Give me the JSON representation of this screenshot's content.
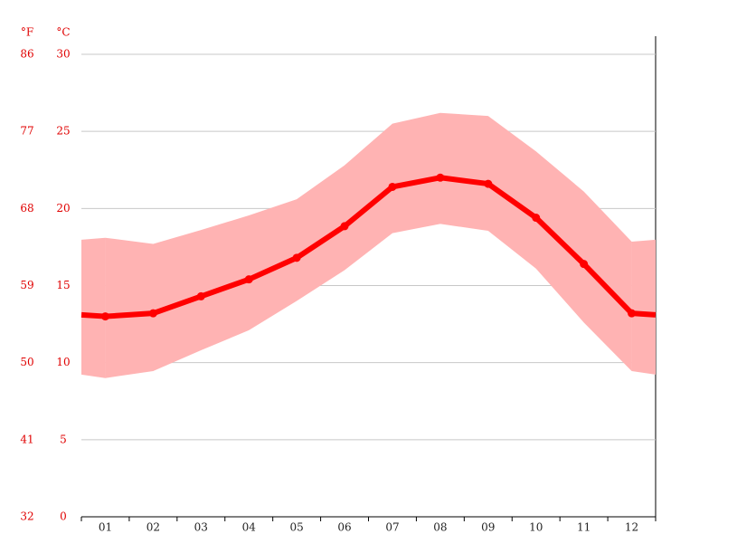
{
  "chart_data": {
    "type": "line",
    "ylabel": "°C",
    "y2label": "°F",
    "categories": [
      "01",
      "02",
      "03",
      "04",
      "05",
      "06",
      "07",
      "08",
      "09",
      "10",
      "11",
      "12"
    ],
    "values": [
      13.0,
      13.2,
      14.3,
      15.4,
      16.8,
      18.85,
      21.4,
      22.0,
      21.6,
      19.4,
      16.4,
      13.2
    ],
    "max_values": [
      18.1,
      17.7,
      18.6,
      19.55,
      20.6,
      22.8,
      25.5,
      26.2,
      26.0,
      23.7,
      21.1,
      17.85
    ],
    "min_values": [
      9.0,
      9.45,
      10.8,
      12.1,
      14.0,
      16.0,
      18.4,
      19.0,
      18.55,
      16.1,
      12.6,
      9.45
    ],
    "color": "#ff0000",
    "band_color": "#ffb3b3",
    "ylim": [
      0,
      30
    ],
    "yticks": [
      0,
      5,
      10,
      15,
      20,
      25,
      30
    ],
    "y2lim": [
      32,
      86
    ],
    "y2ticks": [
      32,
      41,
      50,
      59,
      68,
      77,
      86
    ],
    "grid": true
  }
}
